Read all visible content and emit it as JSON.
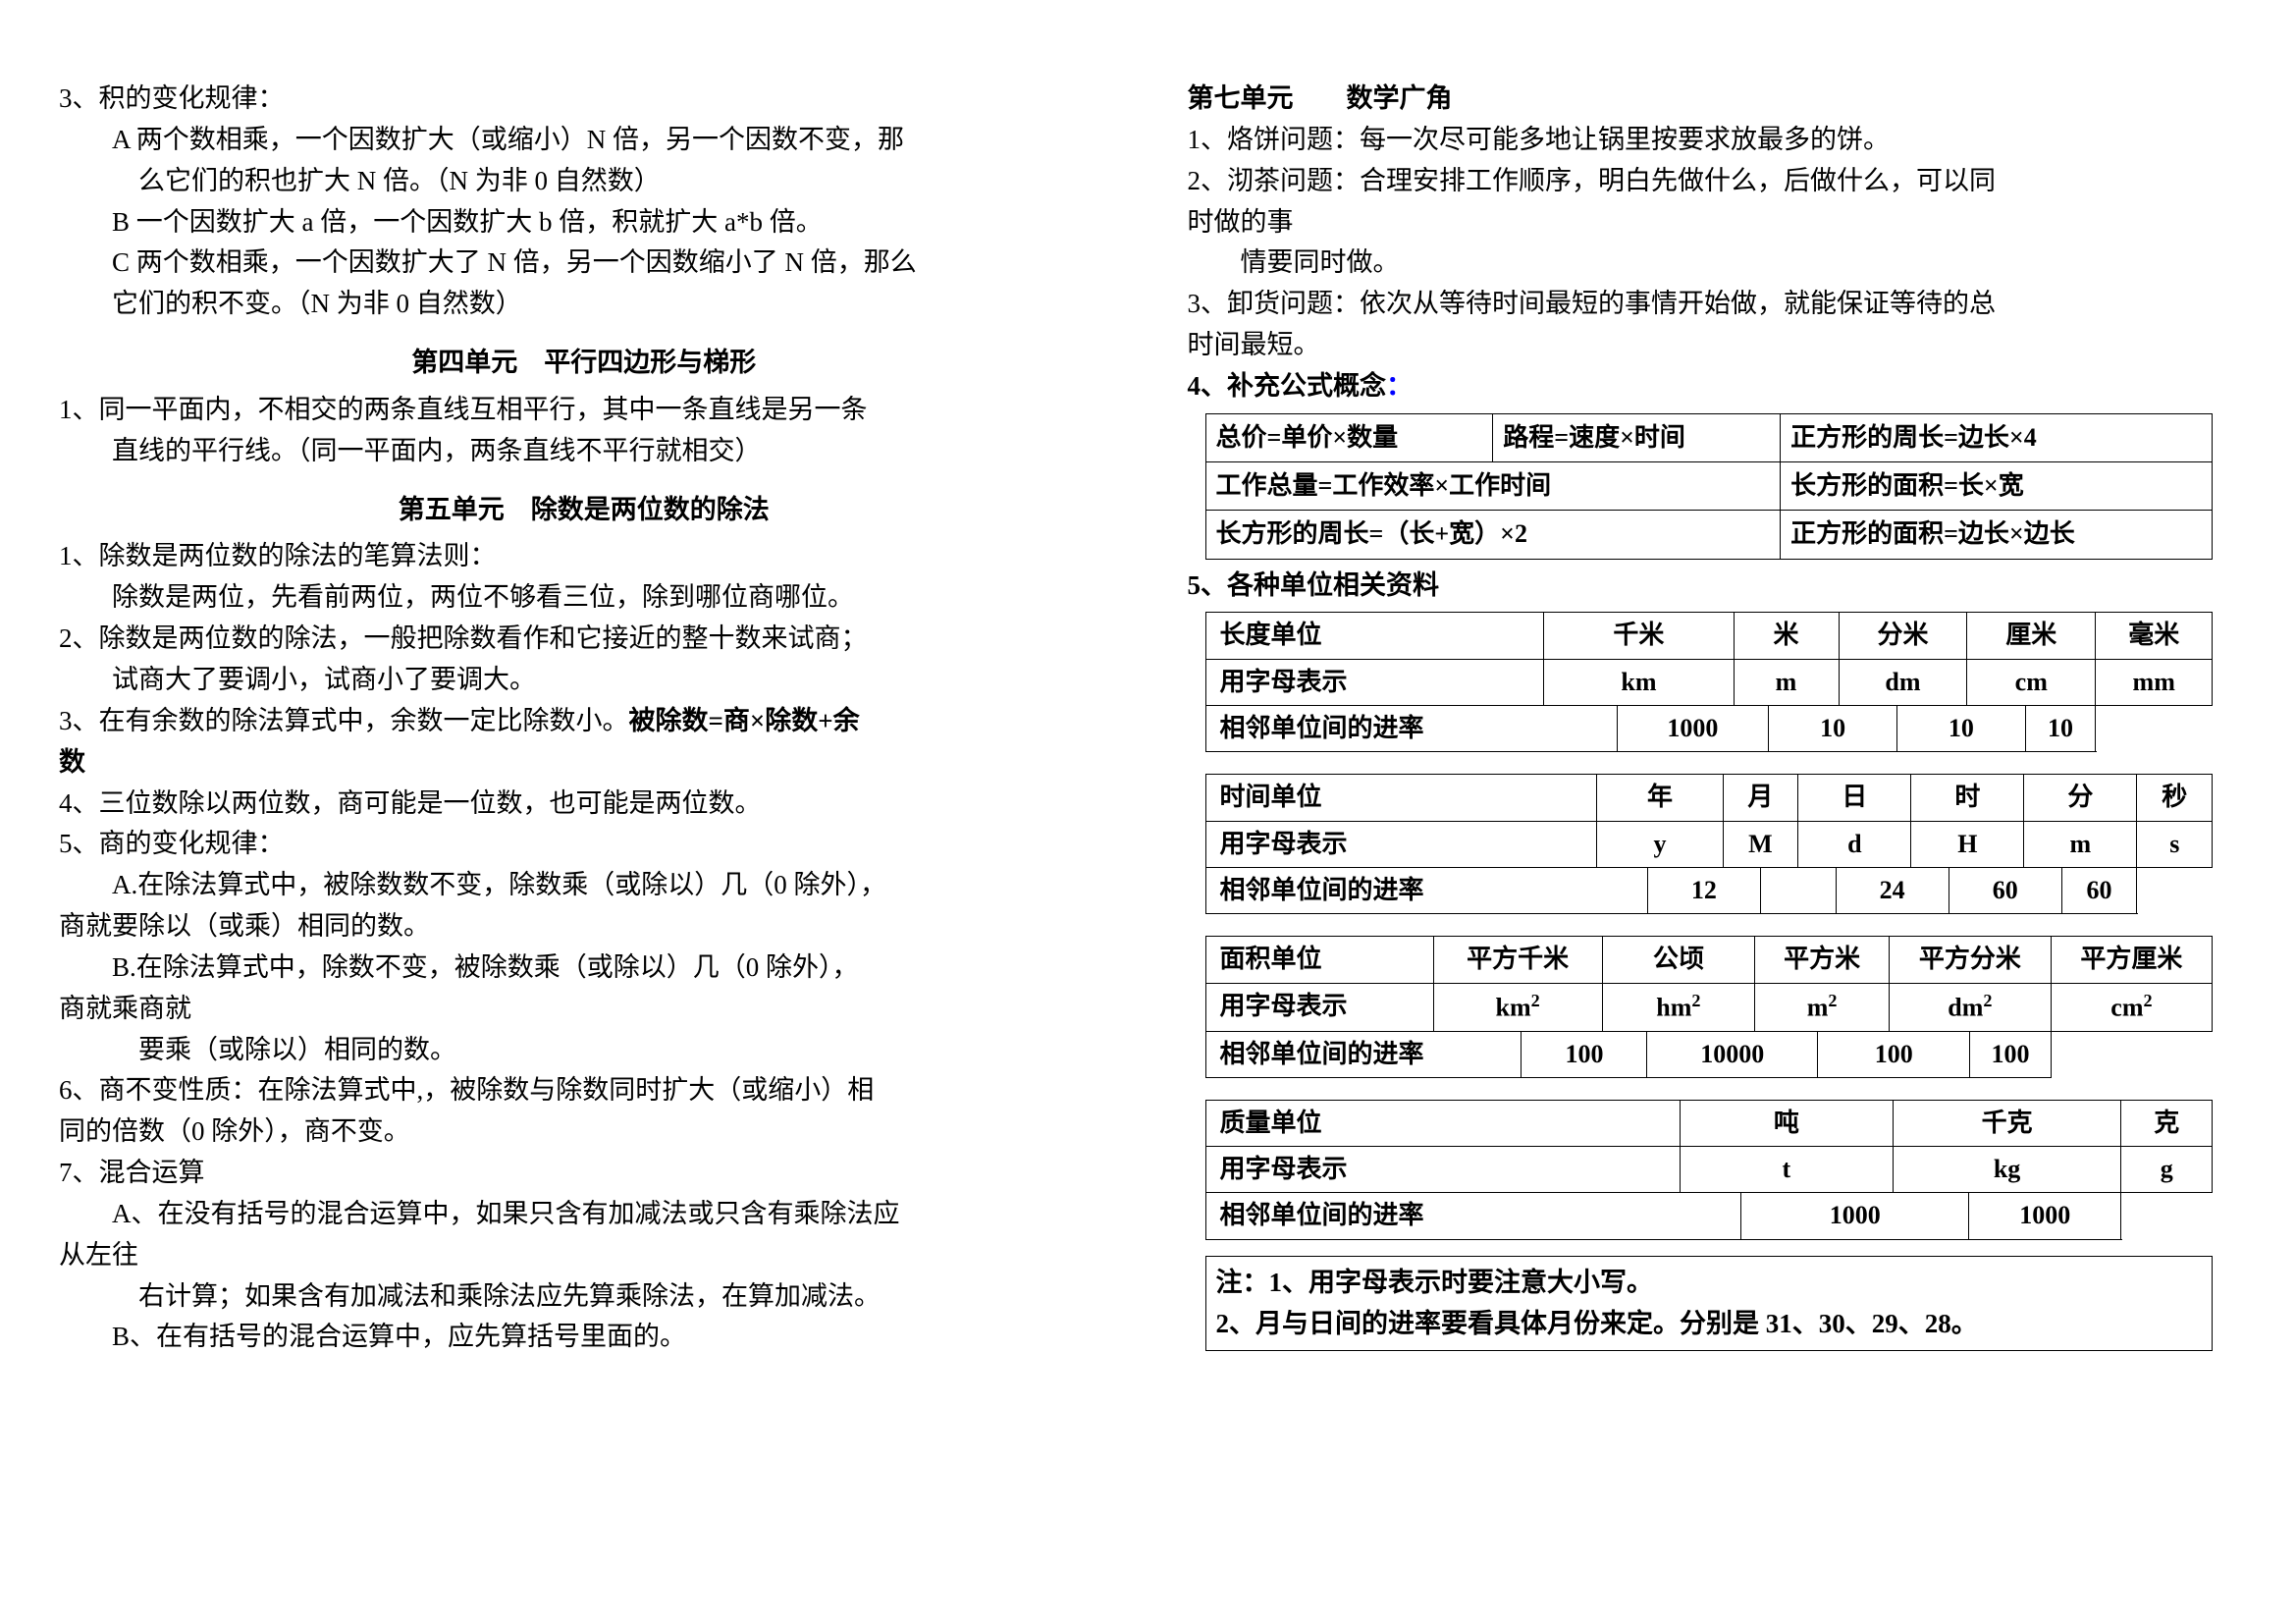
{
  "left": {
    "sec3": {
      "title": "3、积的变化规律：",
      "a1": "A 两个数相乘，一个因数扩大（或缩小）N 倍，另一个因数不变，那",
      "a2": "么它们的积也扩大 N 倍。（N 为非 0 自然数）",
      "b1": "B 一个因数扩大 a 倍，一个因数扩大 b 倍，积就扩大 a*b 倍。",
      "c1": "C 两个数相乘，一个因数扩大了 N 倍，另一个因数缩小了 N 倍，那么",
      "c2": "它们的积不变。（N 为非 0 自然数）"
    },
    "unit4": {
      "heading": "第四单元　平行四边形与梯形",
      "p1": "1、同一平面内，不相交的两条直线互相平行，其中一条直线是另一条",
      "p2": "直线的平行线。（同一平面内，两条直线不平行就相交）"
    },
    "unit5": {
      "heading": "第五单元　除数是两位数的除法",
      "p1a": "1、除数是两位数的除法的笔算法则：",
      "p1b": "除数是两位，先看前两位，两位不够看三位，除到哪位商哪位。",
      "p2a": "2、除数是两位数的除法，一般把除数看作和它接近的整十数来试商；",
      "p2b": "试商大了要调小，试商小了要调大。",
      "p3a": "3、在有余数的除法算式中，余数一定比除数小。",
      "p3b": "被除数=商×除数+余",
      "p3c": "数",
      "p4": "4、三位数除以两位数，商可能是一位数，也可能是两位数。",
      "p5": "5、商的变化规律：",
      "p5a1": "A.在除法算式中，被除数数不变，除数乘（或除以）几（0 除外），",
      "p5a2": "商就要除以（或乘）相同的数。",
      "p5b1": "B.在除法算式中，除数不变，被除数乘（或除以）几（0 除外），",
      "p5b2": "商就乘商就",
      "p5b3": "要乘（或除以）相同的数。",
      "p6a": "6、商不变性质：在除法算式中,，被除数与除数同时扩大（或缩小）相",
      "p6b": "同的倍数（0 除外），商不变。",
      "p7": "7、混合运算",
      "p7a1": "A、在没有括号的混合运算中，如果只含有加减法或只含有乘除法应",
      "p7a2": "从左往",
      "p7a3": "右计算；如果含有加减法和乘除法应先算乘除法，在算加减法。",
      "p7b": "B、在有括号的混合运算中，应先算括号里面的。"
    }
  },
  "right": {
    "unit7": {
      "heading": "第七单元　　数学广角",
      "p1": "1、烙饼问题：每一次尽可能多地让锅里按要求放最多的饼。",
      "p2a": "2、沏茶问题：合理安排工作顺序，明白先做什么，后做什么，可以同",
      "p2b": "时做的事",
      "p2c": "情要同时做。",
      "p3a": "3、卸货问题：依次从等待时间最短的事情开始做，就能保证等待的总",
      "p3b": "时间最短。",
      "p4title": "4、补充公式概念",
      "p4colon": "：",
      "formula": {
        "r1c1": "总价=单价×数量",
        "r1c2": "路程=速度×时间",
        "r1c3": "正方形的周长=边长×4",
        "r2c1": "工作总量=工作效率×工作时间",
        "r2c2": "长方形的面积=长×宽",
        "r3c1": "长方形的周长=（长+宽）×2",
        "r3c2": "正方形的面积=边长×边长"
      },
      "p5title": "5、各种单位相关资料",
      "length": {
        "label": "长度单位",
        "u": [
          "千米",
          "米",
          "分米",
          "厘米",
          "毫米"
        ],
        "sym_label": "用字母表示",
        "sym": [
          "km",
          "m",
          "dm",
          "cm",
          "mm"
        ],
        "rate_label": "相邻单位间的进率",
        "rate": [
          "1000",
          "10",
          "10",
          "10"
        ]
      },
      "time": {
        "label": "时间单位",
        "u": [
          "年",
          "月",
          "日",
          "时",
          "分",
          "秒"
        ],
        "sym_label": "用字母表示",
        "sym": [
          "y",
          "M",
          "d",
          "H",
          "m",
          "s"
        ],
        "rate_label": "相邻单位间的进率",
        "rate": [
          "12",
          "",
          "24",
          "60",
          "60"
        ]
      },
      "area": {
        "label": "面积单位",
        "u": [
          "平方千米",
          "公顷",
          "平方米",
          "平方分米",
          "平方厘米"
        ],
        "sym_label": "用字母表示",
        "sym_base": [
          "km",
          "hm",
          "m",
          "dm",
          "cm"
        ],
        "rate_label": "相邻单位间的进率",
        "rate": [
          "100",
          "10000",
          "100",
          "100"
        ]
      },
      "mass": {
        "label": "质量单位",
        "u": [
          "吨",
          "千克",
          "克"
        ],
        "sym_label": "用字母表示",
        "sym": [
          "t",
          "kg",
          "g"
        ],
        "rate_label": "相邻单位间的进率",
        "rate": [
          "1000",
          "1000"
        ]
      },
      "note1": "注：1、用字母表示时要注意大小写。",
      "note2": "2、月与日间的进率要看具体月份来定。分别是 31、30、29、28。"
    }
  }
}
